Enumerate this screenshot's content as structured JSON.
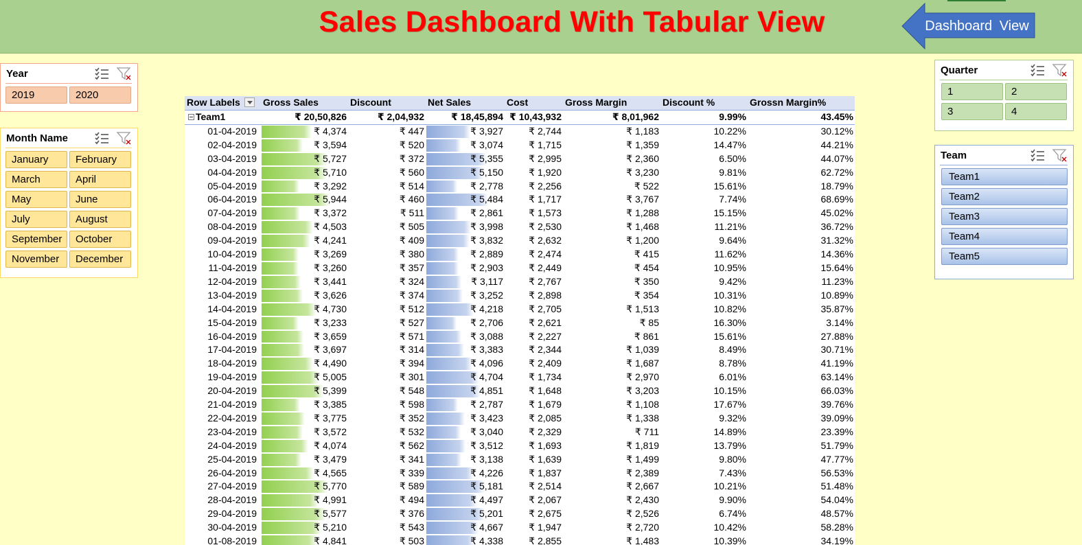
{
  "banner": {
    "title": "Sales Dashboard With Tabular View",
    "nav_button_label": "Dashboard  View",
    "colors": {
      "banner_bg": "#A9D08E",
      "title": "#FF0000",
      "nav_button": "#4472C4"
    }
  },
  "slicers": {
    "year": {
      "title": "Year",
      "items": [
        "2019",
        "2020"
      ]
    },
    "month": {
      "title": "Month Name",
      "items": [
        "January",
        "February",
        "March",
        "April",
        "May",
        "June",
        "July",
        "August",
        "September",
        "October",
        "November",
        "December"
      ]
    },
    "quarter": {
      "title": "Quarter",
      "items": [
        "1",
        "2",
        "3",
        "4"
      ]
    },
    "team": {
      "title": "Team",
      "items": [
        "Team1",
        "Team2",
        "Team3",
        "Team4",
        "Team5"
      ]
    }
  },
  "pivot": {
    "headers": [
      "Row Labels",
      "Gross Sales",
      "Discount",
      "Net Sales",
      "Cost",
      "Gross Margin",
      "Discount %",
      "Grossn Margin%"
    ],
    "total": {
      "label": "Team1",
      "gross": "₹ 20,50,826",
      "discount": "₹ 2,04,932",
      "net": "₹ 18,45,894",
      "cost": "₹ 10,43,932",
      "margin": "₹ 8,01,962",
      "disc_pct": "9.99%",
      "margin_pct": "43.45%"
    },
    "rows": [
      {
        "date": "01-04-2019",
        "gross": "₹ 4,374",
        "discount": "₹ 447",
        "net": "₹ 3,927",
        "cost": "₹ 2,744",
        "margin": "₹ 1,183",
        "disc_pct": "10.22%",
        "margin_pct": "30.12%",
        "gross_value": 4374,
        "net_value": 3927
      },
      {
        "date": "02-04-2019",
        "gross": "₹ 3,594",
        "discount": "₹ 520",
        "net": "₹ 3,074",
        "cost": "₹ 1,715",
        "margin": "₹ 1,359",
        "disc_pct": "14.47%",
        "margin_pct": "44.21%",
        "gross_value": 3594,
        "net_value": 3074
      },
      {
        "date": "03-04-2019",
        "gross": "₹ 5,727",
        "discount": "₹ 372",
        "net": "₹ 5,355",
        "cost": "₹ 2,995",
        "margin": "₹ 2,360",
        "disc_pct": "6.50%",
        "margin_pct": "44.07%",
        "gross_value": 5727,
        "net_value": 5355
      },
      {
        "date": "04-04-2019",
        "gross": "₹ 5,710",
        "discount": "₹ 560",
        "net": "₹ 5,150",
        "cost": "₹ 1,920",
        "margin": "₹ 3,230",
        "disc_pct": "9.81%",
        "margin_pct": "62.72%",
        "gross_value": 5710,
        "net_value": 5150
      },
      {
        "date": "05-04-2019",
        "gross": "₹ 3,292",
        "discount": "₹ 514",
        "net": "₹ 2,778",
        "cost": "₹ 2,256",
        "margin": "₹ 522",
        "disc_pct": "15.61%",
        "margin_pct": "18.79%",
        "gross_value": 3292,
        "net_value": 2778
      },
      {
        "date": "06-04-2019",
        "gross": "₹ 5,944",
        "discount": "₹ 460",
        "net": "₹ 5,484",
        "cost": "₹ 1,717",
        "margin": "₹ 3,767",
        "disc_pct": "7.74%",
        "margin_pct": "68.69%",
        "gross_value": 5944,
        "net_value": 5484
      },
      {
        "date": "07-04-2019",
        "gross": "₹ 3,372",
        "discount": "₹ 511",
        "net": "₹ 2,861",
        "cost": "₹ 1,573",
        "margin": "₹ 1,288",
        "disc_pct": "15.15%",
        "margin_pct": "45.02%",
        "gross_value": 3372,
        "net_value": 2861
      },
      {
        "date": "08-04-2019",
        "gross": "₹ 4,503",
        "discount": "₹ 505",
        "net": "₹ 3,998",
        "cost": "₹ 2,530",
        "margin": "₹ 1,468",
        "disc_pct": "11.21%",
        "margin_pct": "36.72%",
        "gross_value": 4503,
        "net_value": 3998
      },
      {
        "date": "09-04-2019",
        "gross": "₹ 4,241",
        "discount": "₹ 409",
        "net": "₹ 3,832",
        "cost": "₹ 2,632",
        "margin": "₹ 1,200",
        "disc_pct": "9.64%",
        "margin_pct": "31.32%",
        "gross_value": 4241,
        "net_value": 3832
      },
      {
        "date": "10-04-2019",
        "gross": "₹ 3,269",
        "discount": "₹ 380",
        "net": "₹ 2,889",
        "cost": "₹ 2,474",
        "margin": "₹ 415",
        "disc_pct": "11.62%",
        "margin_pct": "14.36%",
        "gross_value": 3269,
        "net_value": 2889
      },
      {
        "date": "11-04-2019",
        "gross": "₹ 3,260",
        "discount": "₹ 357",
        "net": "₹ 2,903",
        "cost": "₹ 2,449",
        "margin": "₹ 454",
        "disc_pct": "10.95%",
        "margin_pct": "15.64%",
        "gross_value": 3260,
        "net_value": 2903
      },
      {
        "date": "12-04-2019",
        "gross": "₹ 3,441",
        "discount": "₹ 324",
        "net": "₹ 3,117",
        "cost": "₹ 2,767",
        "margin": "₹ 350",
        "disc_pct": "9.42%",
        "margin_pct": "11.23%",
        "gross_value": 3441,
        "net_value": 3117
      },
      {
        "date": "13-04-2019",
        "gross": "₹ 3,626",
        "discount": "₹ 374",
        "net": "₹ 3,252",
        "cost": "₹ 2,898",
        "margin": "₹ 354",
        "disc_pct": "10.31%",
        "margin_pct": "10.89%",
        "gross_value": 3626,
        "net_value": 3252
      },
      {
        "date": "14-04-2019",
        "gross": "₹ 4,730",
        "discount": "₹ 512",
        "net": "₹ 4,218",
        "cost": "₹ 2,705",
        "margin": "₹ 1,513",
        "disc_pct": "10.82%",
        "margin_pct": "35.87%",
        "gross_value": 4730,
        "net_value": 4218
      },
      {
        "date": "15-04-2019",
        "gross": "₹ 3,233",
        "discount": "₹ 527",
        "net": "₹ 2,706",
        "cost": "₹ 2,621",
        "margin": "₹ 85",
        "disc_pct": "16.30%",
        "margin_pct": "3.14%",
        "gross_value": 3233,
        "net_value": 2706
      },
      {
        "date": "16-04-2019",
        "gross": "₹ 3,659",
        "discount": "₹ 571",
        "net": "₹ 3,088",
        "cost": "₹ 2,227",
        "margin": "₹ 861",
        "disc_pct": "15.61%",
        "margin_pct": "27.88%",
        "gross_value": 3659,
        "net_value": 3088
      },
      {
        "date": "17-04-2019",
        "gross": "₹ 3,697",
        "discount": "₹ 314",
        "net": "₹ 3,383",
        "cost": "₹ 2,344",
        "margin": "₹ 1,039",
        "disc_pct": "8.49%",
        "margin_pct": "30.71%",
        "gross_value": 3697,
        "net_value": 3383
      },
      {
        "date": "18-04-2019",
        "gross": "₹ 4,490",
        "discount": "₹ 394",
        "net": "₹ 4,096",
        "cost": "₹ 2,409",
        "margin": "₹ 1,687",
        "disc_pct": "8.78%",
        "margin_pct": "41.19%",
        "gross_value": 4490,
        "net_value": 4096
      },
      {
        "date": "19-04-2019",
        "gross": "₹ 5,005",
        "discount": "₹ 301",
        "net": "₹ 4,704",
        "cost": "₹ 1,734",
        "margin": "₹ 2,970",
        "disc_pct": "6.01%",
        "margin_pct": "63.14%",
        "gross_value": 5005,
        "net_value": 4704
      },
      {
        "date": "20-04-2019",
        "gross": "₹ 5,399",
        "discount": "₹ 548",
        "net": "₹ 4,851",
        "cost": "₹ 1,648",
        "margin": "₹ 3,203",
        "disc_pct": "10.15%",
        "margin_pct": "66.03%",
        "gross_value": 5399,
        "net_value": 4851
      },
      {
        "date": "21-04-2019",
        "gross": "₹ 3,385",
        "discount": "₹ 598",
        "net": "₹ 2,787",
        "cost": "₹ 1,679",
        "margin": "₹ 1,108",
        "disc_pct": "17.67%",
        "margin_pct": "39.76%",
        "gross_value": 3385,
        "net_value": 2787
      },
      {
        "date": "22-04-2019",
        "gross": "₹ 3,775",
        "discount": "₹ 352",
        "net": "₹ 3,423",
        "cost": "₹ 2,085",
        "margin": "₹ 1,338",
        "disc_pct": "9.32%",
        "margin_pct": "39.09%",
        "gross_value": 3775,
        "net_value": 3423
      },
      {
        "date": "23-04-2019",
        "gross": "₹ 3,572",
        "discount": "₹ 532",
        "net": "₹ 3,040",
        "cost": "₹ 2,329",
        "margin": "₹ 711",
        "disc_pct": "14.89%",
        "margin_pct": "23.39%",
        "gross_value": 3572,
        "net_value": 3040
      },
      {
        "date": "24-04-2019",
        "gross": "₹ 4,074",
        "discount": "₹ 562",
        "net": "₹ 3,512",
        "cost": "₹ 1,693",
        "margin": "₹ 1,819",
        "disc_pct": "13.79%",
        "margin_pct": "51.79%",
        "gross_value": 4074,
        "net_value": 3512
      },
      {
        "date": "25-04-2019",
        "gross": "₹ 3,479",
        "discount": "₹ 341",
        "net": "₹ 3,138",
        "cost": "₹ 1,639",
        "margin": "₹ 1,499",
        "disc_pct": "9.80%",
        "margin_pct": "47.77%",
        "gross_value": 3479,
        "net_value": 3138
      },
      {
        "date": "26-04-2019",
        "gross": "₹ 4,565",
        "discount": "₹ 339",
        "net": "₹ 4,226",
        "cost": "₹ 1,837",
        "margin": "₹ 2,389",
        "disc_pct": "7.43%",
        "margin_pct": "56.53%",
        "gross_value": 4565,
        "net_value": 4226
      },
      {
        "date": "27-04-2019",
        "gross": "₹ 5,770",
        "discount": "₹ 589",
        "net": "₹ 5,181",
        "cost": "₹ 2,514",
        "margin": "₹ 2,667",
        "disc_pct": "10.21%",
        "margin_pct": "51.48%",
        "gross_value": 5770,
        "net_value": 5181
      },
      {
        "date": "28-04-2019",
        "gross": "₹ 4,991",
        "discount": "₹ 494",
        "net": "₹ 4,497",
        "cost": "₹ 2,067",
        "margin": "₹ 2,430",
        "disc_pct": "9.90%",
        "margin_pct": "54.04%",
        "gross_value": 4991,
        "net_value": 4497
      },
      {
        "date": "29-04-2019",
        "gross": "₹ 5,577",
        "discount": "₹ 376",
        "net": "₹ 5,201",
        "cost": "₹ 2,675",
        "margin": "₹ 2,526",
        "disc_pct": "6.74%",
        "margin_pct": "48.57%",
        "gross_value": 5577,
        "net_value": 5201
      },
      {
        "date": "30-04-2019",
        "gross": "₹ 5,210",
        "discount": "₹ 543",
        "net": "₹ 4,667",
        "cost": "₹ 1,947",
        "margin": "₹ 2,720",
        "disc_pct": "10.42%",
        "margin_pct": "58.28%",
        "gross_value": 5210,
        "net_value": 4667
      },
      {
        "date": "01-08-2019",
        "gross": "₹ 4,841",
        "discount": "₹ 503",
        "net": "₹ 4,338",
        "cost": "₹ 2,855",
        "margin": "₹ 1,483",
        "disc_pct": "10.39%",
        "margin_pct": "34.19%",
        "gross_value": 4841,
        "net_value": 4338
      }
    ],
    "databar_colors": {
      "gross": "#92D050",
      "net": "#8EA9DB"
    }
  }
}
